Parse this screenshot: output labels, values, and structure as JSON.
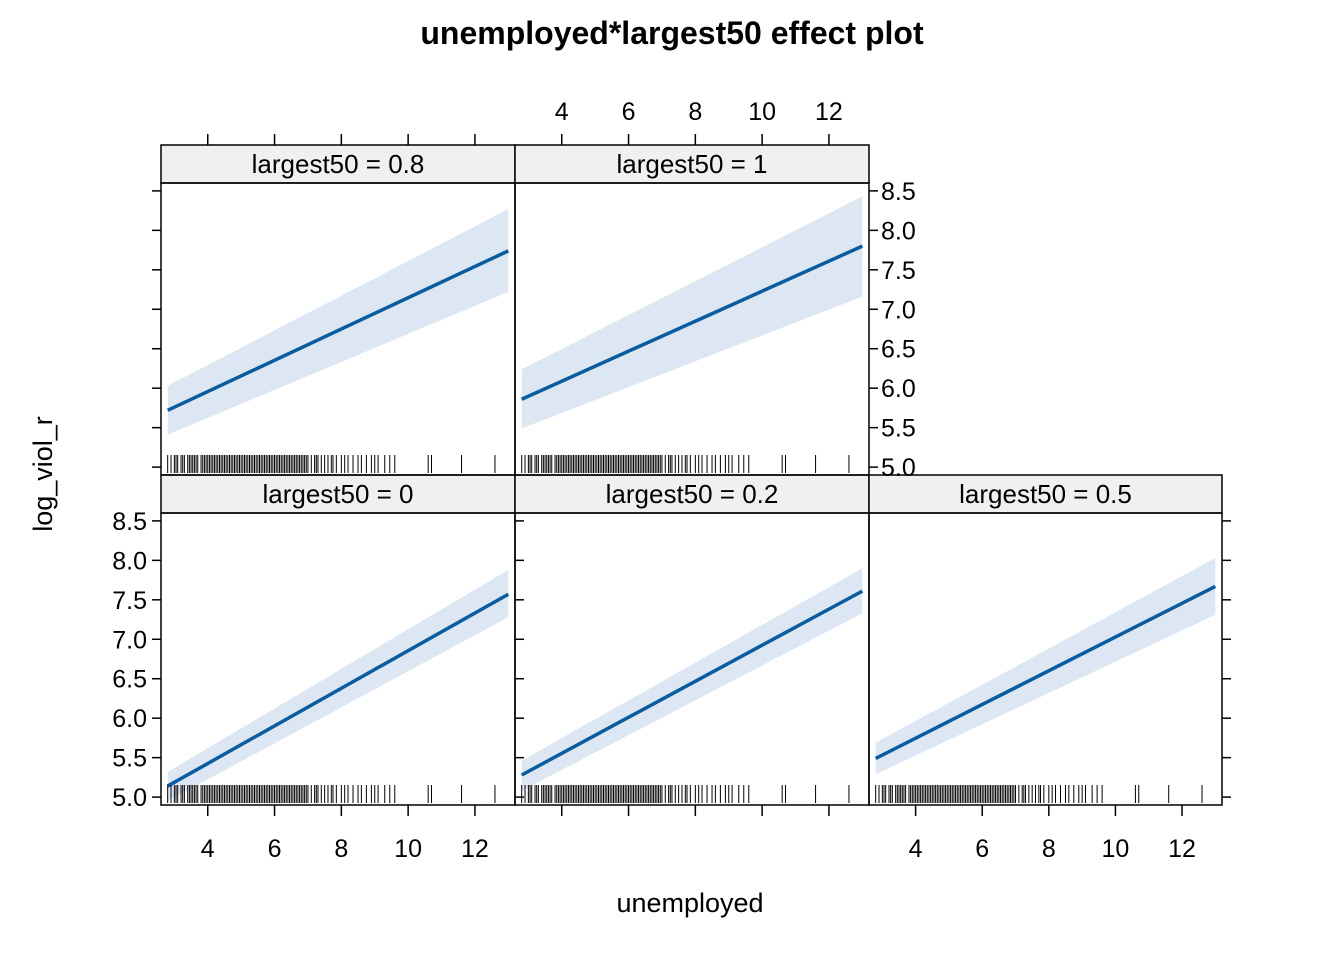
{
  "chart_data": {
    "type": "line",
    "title": "unemployed*largest50 effect plot",
    "xlabel": "unemployed",
    "ylabel": "log_viol_r",
    "xlim": [
      2.6,
      13.2
    ],
    "ylim": [
      4.9,
      8.6
    ],
    "x_ticks": [
      4,
      6,
      8,
      10,
      12
    ],
    "y_ticks": [
      5.0,
      5.5,
      6.0,
      6.5,
      7.0,
      7.5,
      8.0,
      8.5
    ],
    "y_tick_labels": [
      "5.0",
      "5.5",
      "6.0",
      "6.5",
      "7.0",
      "7.5",
      "8.0",
      "8.5"
    ],
    "grid": false,
    "line_color": "#0b5c9e",
    "band_color": "#dce7f3",
    "strip_color": "#f0f0f0",
    "rug_x": [
      2.8,
      2.9,
      3.0,
      3.05,
      3.1,
      3.2,
      3.25,
      3.3,
      3.4,
      3.45,
      3.5,
      3.55,
      3.6,
      3.65,
      3.7,
      3.8,
      3.85,
      3.9,
      3.95,
      4.0,
      4.05,
      4.1,
      4.15,
      4.2,
      4.25,
      4.3,
      4.35,
      4.4,
      4.45,
      4.5,
      4.55,
      4.6,
      4.65,
      4.7,
      4.75,
      4.8,
      4.85,
      4.9,
      4.95,
      5.0,
      5.05,
      5.1,
      5.15,
      5.2,
      5.25,
      5.3,
      5.35,
      5.4,
      5.45,
      5.5,
      5.55,
      5.6,
      5.65,
      5.7,
      5.75,
      5.8,
      5.85,
      5.9,
      5.95,
      6.0,
      6.05,
      6.1,
      6.15,
      6.2,
      6.25,
      6.3,
      6.35,
      6.4,
      6.45,
      6.5,
      6.55,
      6.6,
      6.65,
      6.7,
      6.75,
      6.8,
      6.85,
      6.9,
      6.95,
      7.0,
      7.1,
      7.2,
      7.25,
      7.3,
      7.4,
      7.5,
      7.6,
      7.7,
      7.75,
      7.85,
      8.0,
      8.1,
      8.2,
      8.35,
      8.5,
      8.6,
      8.75,
      8.9,
      9.0,
      9.1,
      9.3,
      9.45,
      9.6,
      10.6,
      10.7,
      11.6,
      12.6
    ],
    "panels": [
      {
        "strip": "largest50 = 0",
        "x": [
          2.8,
          13.0
        ],
        "fit": [
          5.14,
          7.57
        ],
        "lower": [
          4.95,
          7.28
        ],
        "upper": [
          5.32,
          7.88
        ]
      },
      {
        "strip": "largest50 = 0.2",
        "x": [
          2.8,
          13.0
        ],
        "fit": [
          5.28,
          7.61
        ],
        "lower": [
          5.08,
          7.33
        ],
        "upper": [
          5.46,
          7.9
        ]
      },
      {
        "strip": "largest50 = 0.5",
        "x": [
          2.8,
          13.0
        ],
        "fit": [
          5.49,
          7.67
        ],
        "lower": [
          5.29,
          7.31
        ],
        "upper": [
          5.69,
          8.03
        ]
      },
      {
        "strip": "largest50 = 0.8",
        "x": [
          2.8,
          13.0
        ],
        "fit": [
          5.72,
          7.74
        ],
        "lower": [
          5.41,
          7.22
        ],
        "upper": [
          6.03,
          8.27
        ]
      },
      {
        "strip": "largest50 = 1",
        "x": [
          2.8,
          13.0
        ],
        "fit": [
          5.86,
          7.8
        ],
        "lower": [
          5.49,
          7.16
        ],
        "upper": [
          6.24,
          8.43
        ]
      }
    ]
  }
}
